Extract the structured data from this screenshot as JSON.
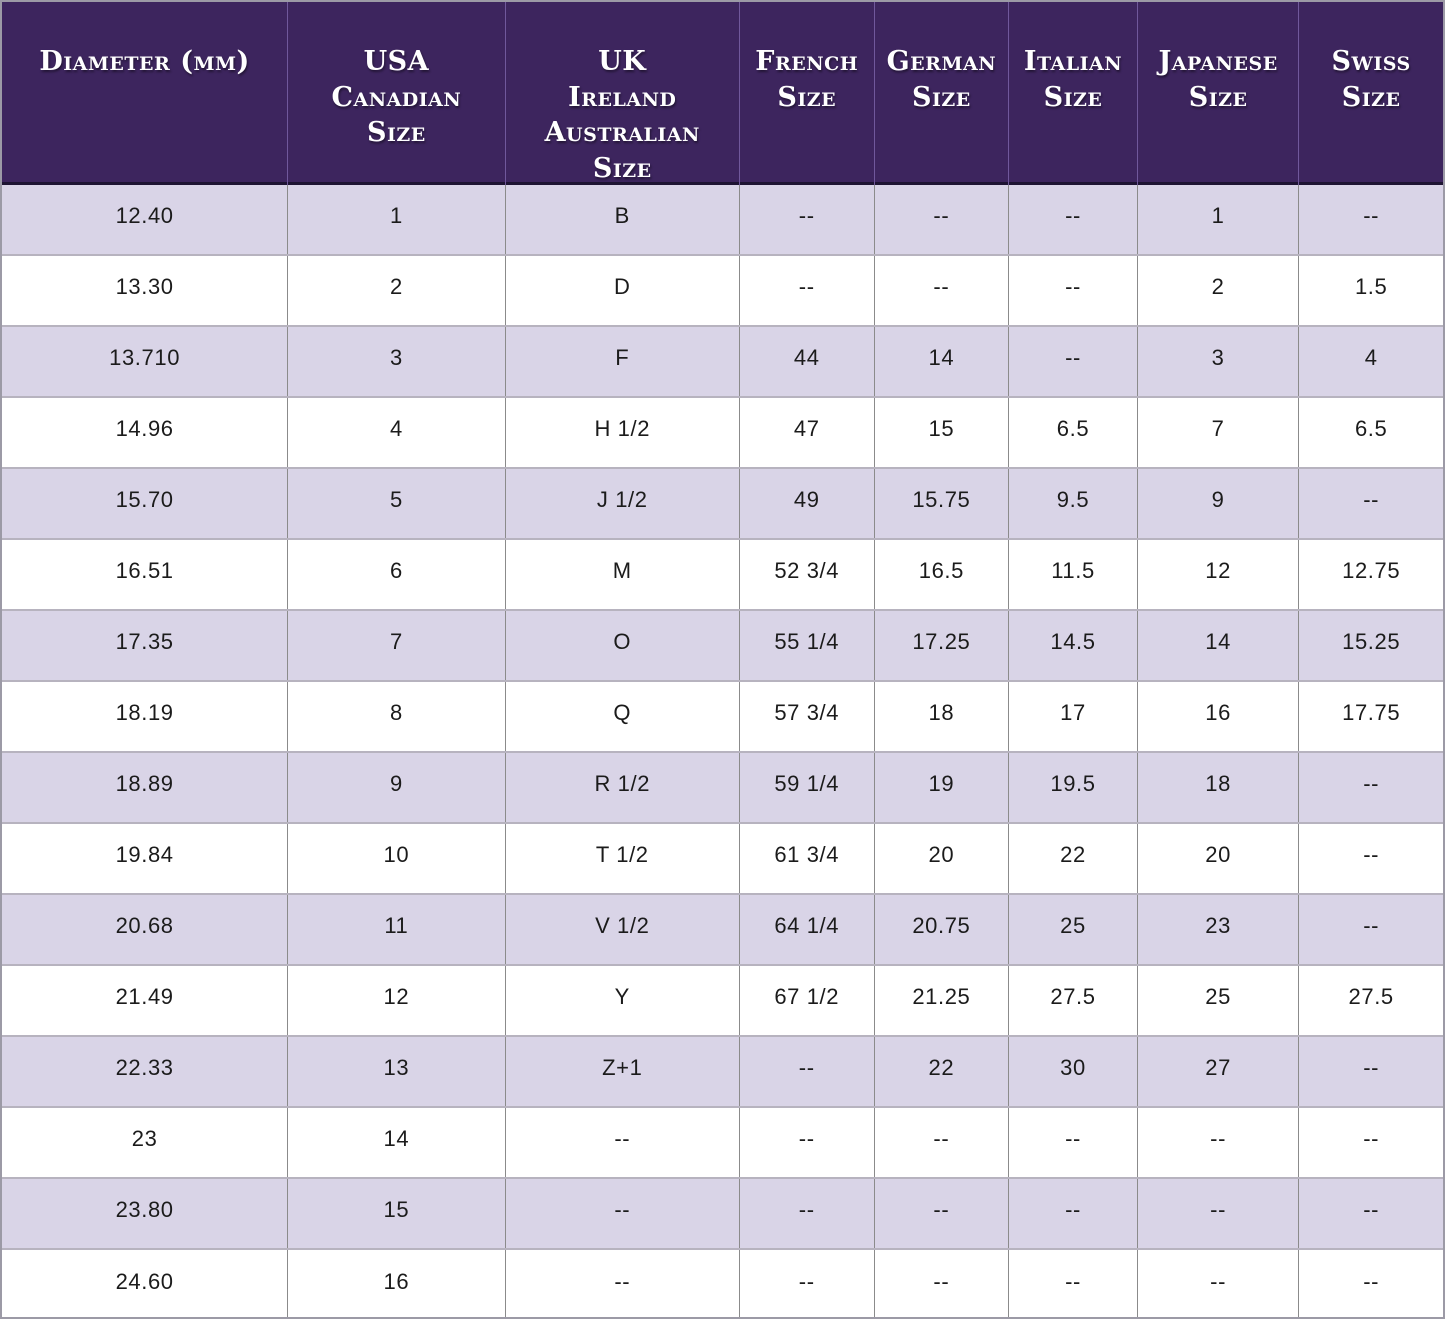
{
  "colors": {
    "header_bg": "#3D255E",
    "header_divider": "#70589B",
    "header_text": "#FFFFFF",
    "row_alt_bg": "#D9D4E7",
    "row_bg": "#FFFFFF",
    "grid_vertical": "#8B8B8B",
    "grid_horizontal": "#B7B3BF",
    "header_underline": "#1E1433",
    "body_text": "#1B1B1B",
    "outer_border": "#9C9AA6"
  },
  "chart_data": {
    "type": "table",
    "empty_marker": "--",
    "columns": [
      {
        "id": "diameter-mm",
        "label": "Diameter (mm)"
      },
      {
        "id": "usa-canadian-size",
        "label": "USA\nCanadian\nSize"
      },
      {
        "id": "uk-ireland-australian-size",
        "label": "UK\nIreland\nAustralian\nSize"
      },
      {
        "id": "french-size",
        "label": "French\nSize"
      },
      {
        "id": "german-size",
        "label": "German\nSize"
      },
      {
        "id": "italian-size",
        "label": "Italian\nSize"
      },
      {
        "id": "japanese-size",
        "label": "Japanese Size"
      },
      {
        "id": "swiss-size",
        "label": "Swiss Size"
      }
    ],
    "rows": [
      [
        "12.40",
        "1",
        "B",
        "--",
        "--",
        "--",
        "1",
        "--"
      ],
      [
        "13.30",
        "2",
        "D",
        "--",
        "--",
        "--",
        "2",
        "1.5"
      ],
      [
        "13.710",
        "3",
        "F",
        "44",
        "14",
        "--",
        "3",
        "4"
      ],
      [
        "14.96",
        "4",
        "H 1/2",
        "47",
        "15",
        "6.5",
        "7",
        "6.5"
      ],
      [
        "15.70",
        "5",
        "J 1/2",
        "49",
        "15.75",
        "9.5",
        "9",
        "--"
      ],
      [
        "16.51",
        "6",
        "M",
        "52 3/4",
        "16.5",
        "11.5",
        "12",
        "12.75"
      ],
      [
        "17.35",
        "7",
        "O",
        "55 1/4",
        "17.25",
        "14.5",
        "14",
        "15.25"
      ],
      [
        "18.19",
        "8",
        "Q",
        "57 3/4",
        "18",
        "17",
        "16",
        "17.75"
      ],
      [
        "18.89",
        "9",
        "R 1/2",
        "59 1/4",
        "19",
        "19.5",
        "18",
        "--"
      ],
      [
        "19.84",
        "10",
        "T 1/2",
        "61 3/4",
        "20",
        "22",
        "20",
        "--"
      ],
      [
        "20.68",
        "11",
        "V 1/2",
        "64 1/4",
        "20.75",
        "25",
        "23",
        "--"
      ],
      [
        "21.49",
        "12",
        "Y",
        "67 1/2",
        "21.25",
        "27.5",
        "25",
        "27.5"
      ],
      [
        "22.33",
        "13",
        "Z+1",
        "--",
        "22",
        "30",
        "27",
        "--"
      ],
      [
        "23",
        "14",
        "--",
        "--",
        "--",
        "--",
        "--",
        "--"
      ],
      [
        "23.80",
        "15",
        "--",
        "--",
        "--",
        "--",
        "--",
        "--"
      ],
      [
        "24.60",
        "16",
        "--",
        "--",
        "--",
        "--",
        "--",
        "--"
      ]
    ]
  }
}
